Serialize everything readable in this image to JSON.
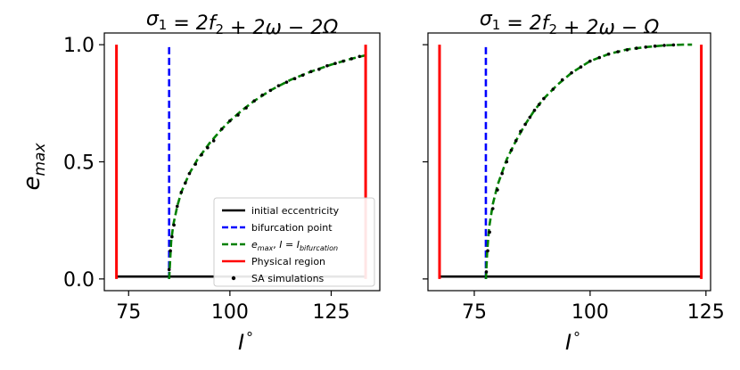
{
  "chart_data": [
    {
      "type": "line",
      "title": "σ₁ = 2f₂ + 2ω − 2Ω",
      "xlabel": "I °",
      "ylabel": "e_max",
      "xlim": [
        69,
        137
      ],
      "ylim": [
        -0.05,
        1.05
      ],
      "xticks": [
        75,
        100,
        125
      ],
      "yticks": [
        0.0,
        0.5,
        1.0
      ],
      "xtick_labels": [
        "75",
        "100",
        "125"
      ],
      "ytick_labels": [
        "0.0",
        "0.5",
        "1.0"
      ],
      "show_ytick_labels": true,
      "legend_position": "lower-right",
      "series": [
        {
          "name": "initial eccentricity",
          "color": "#000000",
          "style": "solid",
          "kind": "line",
          "x": [
            72.0,
            133.5
          ],
          "y": [
            0.01,
            0.01
          ]
        },
        {
          "name": "bifurcation point",
          "color": "#0000ff",
          "style": "dashed",
          "kind": "vline",
          "x": [
            85.0,
            85.0
          ],
          "y": [
            0.0,
            1.0
          ]
        },
        {
          "name": "e_max, I = I_bifurcation",
          "color": "#008000",
          "style": "dashed",
          "kind": "curve",
          "x": [
            85.0,
            85.5,
            86,
            87,
            88,
            90,
            92,
            95,
            98,
            100,
            103,
            106,
            110,
            115,
            120,
            125,
            130,
            133.5
          ],
          "y": [
            0.0,
            0.16,
            0.23,
            0.31,
            0.37,
            0.45,
            0.51,
            0.58,
            0.64,
            0.675,
            0.72,
            0.76,
            0.805,
            0.85,
            0.885,
            0.915,
            0.94,
            0.955
          ]
        },
        {
          "name": "Physical region",
          "color": "#ff0000",
          "style": "solid",
          "kind": "vlines",
          "x": [
            72.0,
            133.5
          ],
          "y": [
            0.0,
            1.0
          ]
        },
        {
          "name": "SA simulations",
          "color": "#000000",
          "style": "markers",
          "kind": "scatter",
          "x": [
            85.0,
            85.3,
            85.7,
            86.2,
            87,
            88,
            89,
            90,
            91.5,
            93,
            94.5,
            96,
            98,
            100,
            102,
            104,
            106,
            108,
            110,
            112,
            114,
            116,
            118,
            120,
            122,
            124,
            126,
            128,
            130,
            132
          ],
          "y": [
            0.04,
            0.12,
            0.18,
            0.23,
            0.31,
            0.37,
            0.41,
            0.45,
            0.49,
            0.53,
            0.56,
            0.59,
            0.64,
            0.675,
            0.7,
            0.73,
            0.76,
            0.785,
            0.805,
            0.825,
            0.84,
            0.855,
            0.87,
            0.885,
            0.895,
            0.91,
            0.92,
            0.93,
            0.94,
            0.95
          ]
        }
      ]
    },
    {
      "type": "line",
      "title": "σ₁ = 2f₂ + 2ω − Ω",
      "xlabel": "I °",
      "ylabel": "",
      "xlim": [
        65,
        126
      ],
      "ylim": [
        -0.05,
        1.05
      ],
      "xticks": [
        75,
        100,
        125
      ],
      "yticks": [
        0.0,
        0.5,
        1.0
      ],
      "xtick_labels": [
        "75",
        "100",
        "125"
      ],
      "ytick_labels": [
        "",
        "",
        ""
      ],
      "show_ytick_labels": false,
      "series": [
        {
          "name": "initial eccentricity",
          "color": "#000000",
          "style": "solid",
          "kind": "line",
          "x": [
            67.5,
            124.0
          ],
          "y": [
            0.01,
            0.01
          ]
        },
        {
          "name": "bifurcation point",
          "color": "#0000ff",
          "style": "dashed",
          "kind": "vline",
          "x": [
            77.5,
            77.5
          ],
          "y": [
            0.0,
            1.0
          ]
        },
        {
          "name": "e_max, I = I_bifurcation",
          "color": "#008000",
          "style": "dashed",
          "kind": "curve",
          "x": [
            77.5,
            77.8,
            78.2,
            79,
            80,
            82,
            84,
            86,
            88,
            90,
            93,
            96,
            100,
            104,
            108,
            112,
            116,
            120,
            122
          ],
          "y": [
            0.0,
            0.12,
            0.22,
            0.32,
            0.4,
            0.51,
            0.59,
            0.66,
            0.72,
            0.77,
            0.83,
            0.88,
            0.93,
            0.96,
            0.98,
            0.99,
            0.997,
            1.0,
            1.0
          ]
        },
        {
          "name": "Physical region",
          "color": "#ff0000",
          "style": "solid",
          "kind": "vlines",
          "x": [
            67.5,
            124.0
          ],
          "y": [
            0.0,
            1.0
          ]
        },
        {
          "name": "SA simulations",
          "color": "#000000",
          "style": "markers",
          "kind": "scatter",
          "x": [
            77.6,
            77.9,
            78.3,
            79,
            80,
            81,
            82,
            83,
            84,
            85,
            86,
            87,
            88,
            89,
            90,
            92,
            94,
            96,
            98,
            100,
            102,
            104,
            106,
            108,
            110,
            112,
            114,
            116,
            118
          ],
          "y": [
            0.03,
            0.12,
            0.2,
            0.3,
            0.38,
            0.45,
            0.5,
            0.55,
            0.59,
            0.63,
            0.66,
            0.69,
            0.72,
            0.745,
            0.77,
            0.81,
            0.85,
            0.88,
            0.905,
            0.93,
            0.945,
            0.96,
            0.97,
            0.978,
            0.985,
            0.99,
            0.994,
            0.997,
            0.999
          ]
        }
      ]
    }
  ],
  "legend": {
    "items": [
      {
        "label": "initial eccentricity",
        "color": "#000000",
        "kind": "solid"
      },
      {
        "label": "bifurcation point",
        "color": "#0000ff",
        "kind": "dashed"
      },
      {
        "label": "e_max, I = I_bifurcation",
        "color": "#008000",
        "kind": "dashed"
      },
      {
        "label": "Physical region",
        "color": "#ff0000",
        "kind": "solid"
      },
      {
        "label": "SA simulations",
        "color": "#000000",
        "kind": "marker"
      }
    ]
  }
}
